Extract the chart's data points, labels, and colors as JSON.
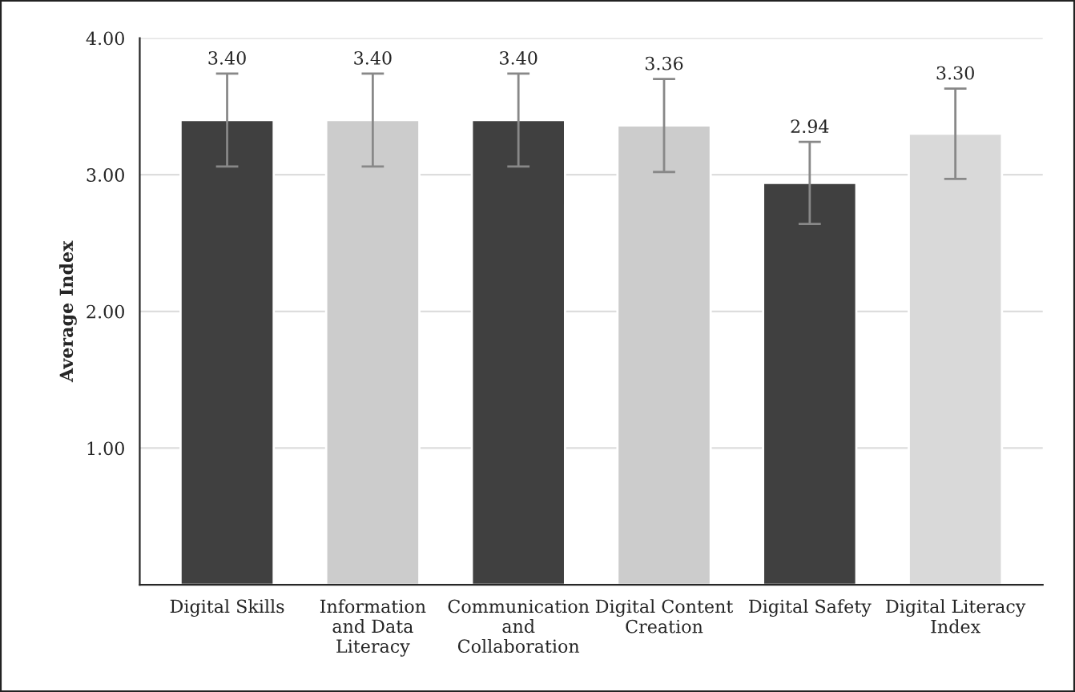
{
  "chart_data": {
    "type": "bar",
    "ylabel": "Average Index",
    "categories": [
      "Digital Skills",
      "Information\nand Data\nLiteracy",
      "Communication\nand\nCollaboration",
      "Digital Content\nCreation",
      "Digital Safety",
      "Digital Literacy\nIndex"
    ],
    "values": [
      3.4,
      3.4,
      3.4,
      3.36,
      2.94,
      3.3
    ],
    "errors": [
      0.34,
      0.34,
      0.34,
      0.34,
      0.3,
      0.33
    ],
    "colors": [
      "#404040",
      "#cccccc",
      "#404040",
      "#cccccc",
      "#404040",
      "#d9d9d9"
    ],
    "value_labels": [
      "3.40",
      "3.40",
      "3.40",
      "3.36",
      "2.94",
      "3.30"
    ],
    "ylim": [
      0,
      4
    ],
    "yticks": [
      {
        "value": 1,
        "label": "1.00"
      },
      {
        "value": 2,
        "label": "2.00"
      },
      {
        "value": 3,
        "label": "3.00"
      },
      {
        "value": 4,
        "label": "4.00"
      }
    ],
    "grid": "y"
  }
}
